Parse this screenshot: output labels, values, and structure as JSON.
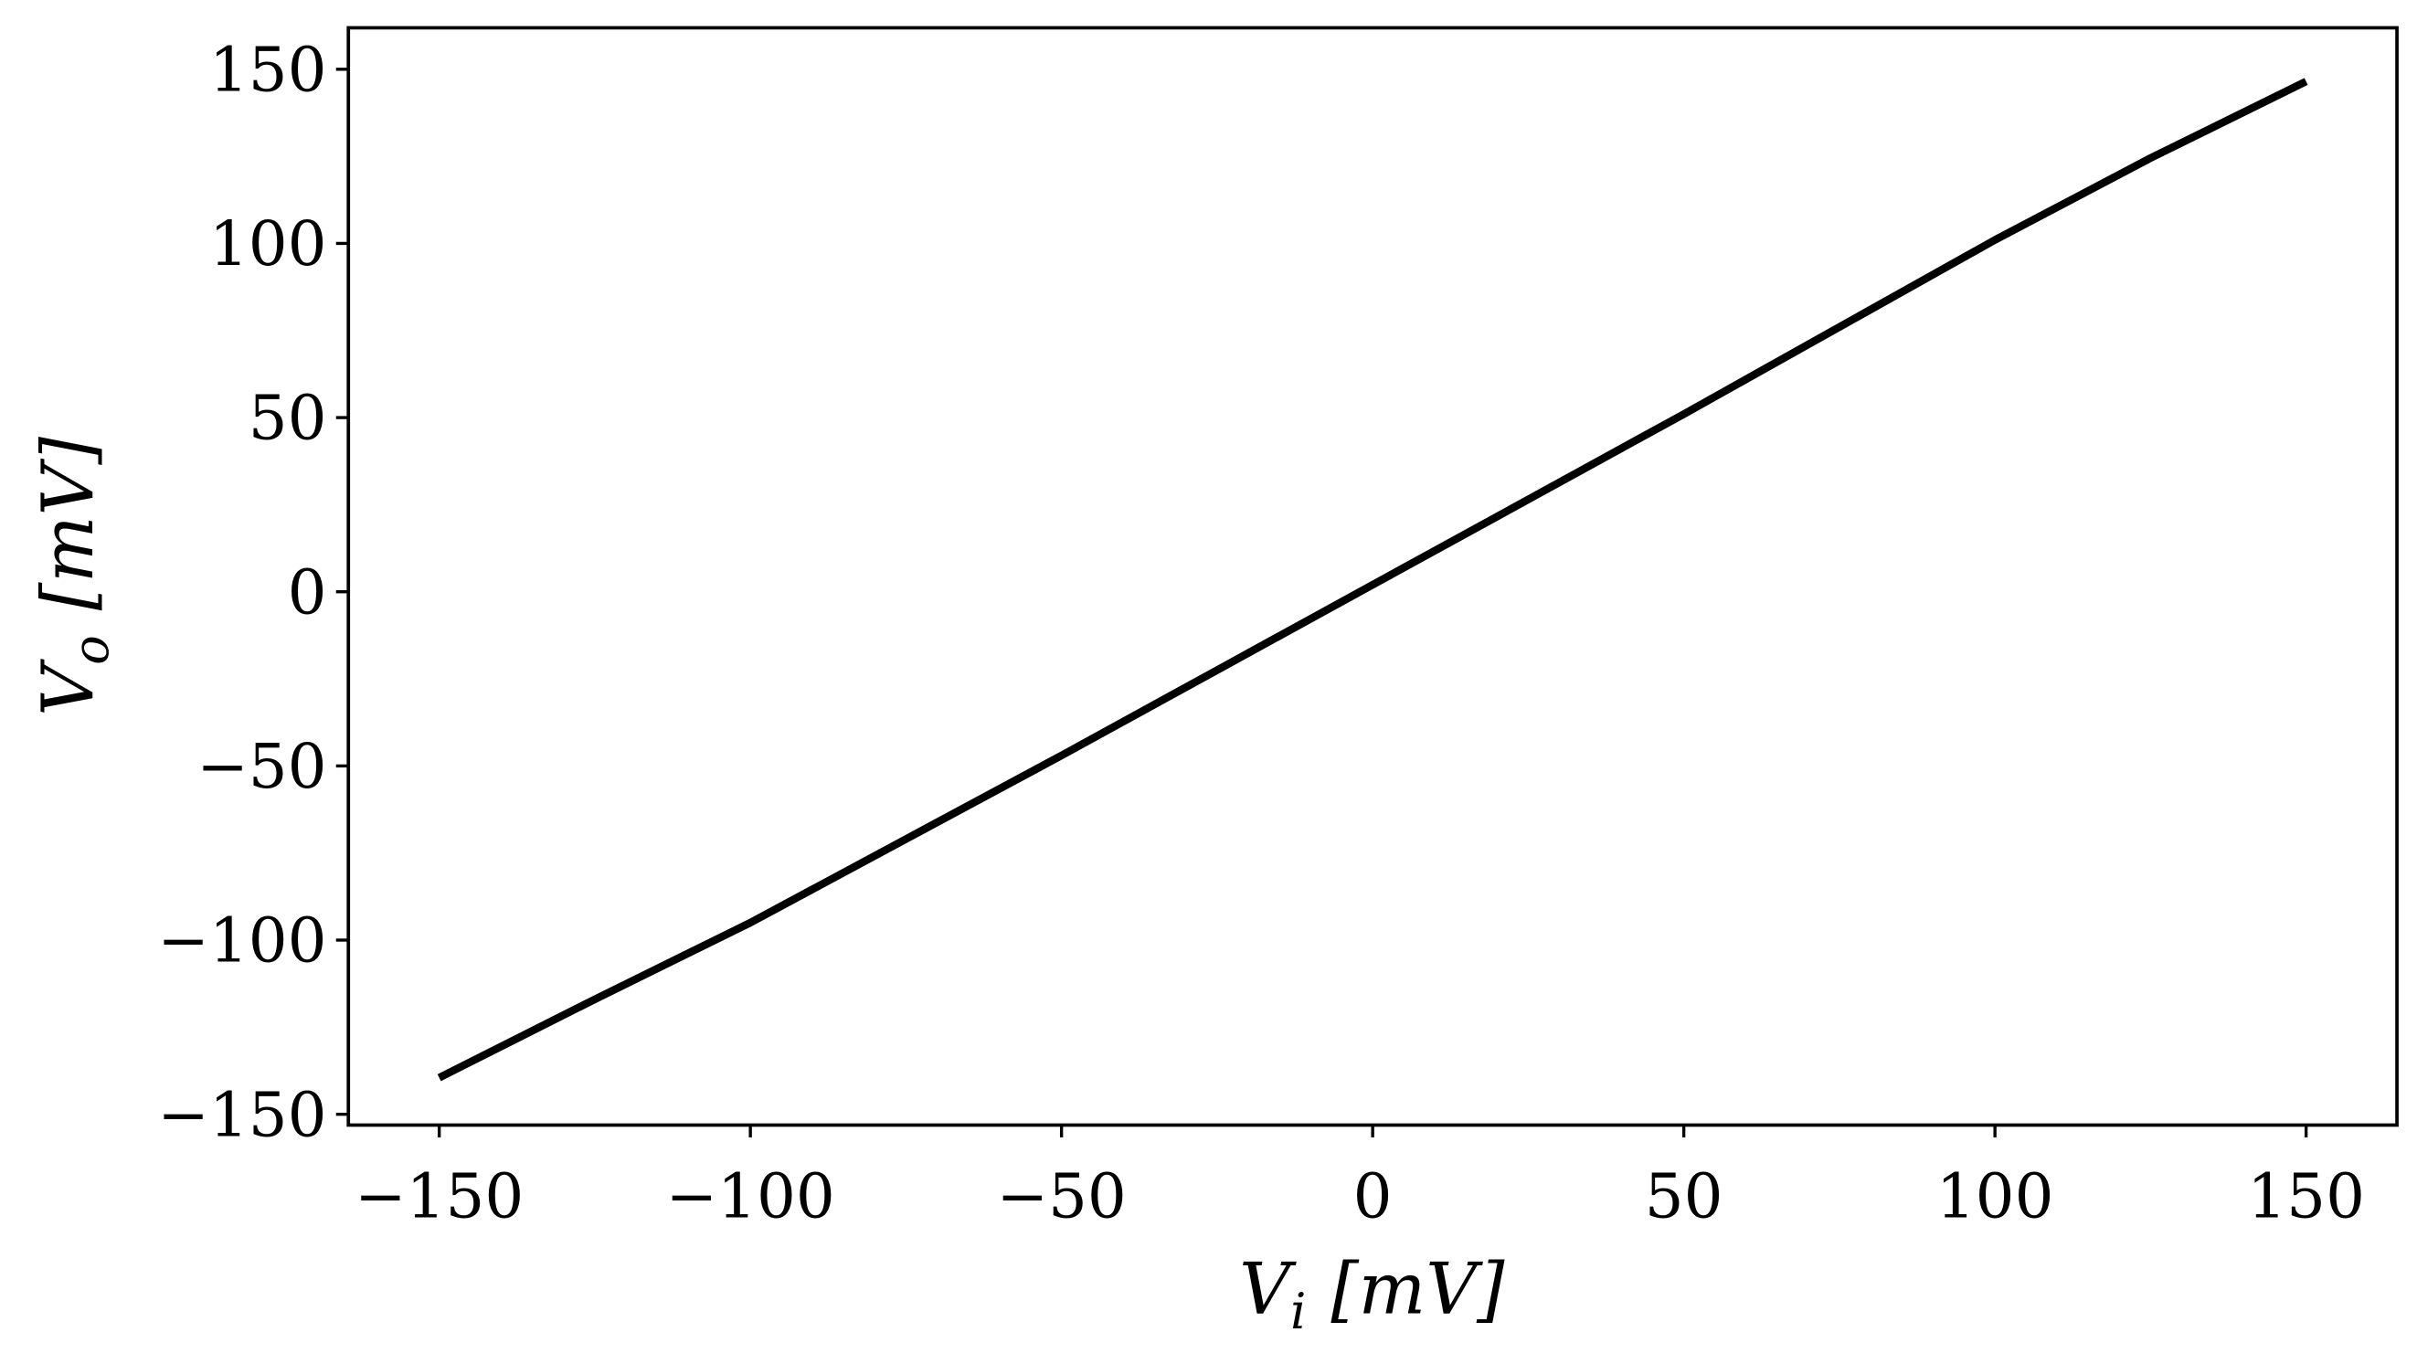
{
  "chart_data": {
    "type": "line",
    "x_label": {
      "base": "V",
      "sub": "i",
      "unit": "[mV]"
    },
    "y_label": {
      "base": "V",
      "sub": "o",
      "unit": "[mV]"
    },
    "x": [
      -150,
      -125,
      -100,
      -75,
      -50,
      -25,
      0,
      25,
      50,
      75,
      100,
      125,
      150
    ],
    "series": [
      {
        "color": "#000000",
        "values": [
          -139.5,
          -117,
          -95,
          -71,
          -47,
          -22.5,
          2,
          26.5,
          51,
          76,
          101,
          124.5,
          146.5
        ]
      }
    ],
    "xlim": [
      -164.6,
      164.6
    ],
    "ylim": [
      -153.1,
      161.9
    ],
    "xticks": [
      {
        "value": -150,
        "label": "−150"
      },
      {
        "value": -100,
        "label": "−100"
      },
      {
        "value": -50,
        "label": "−50"
      },
      0,
      50,
      100,
      150
    ],
    "yticks": [
      {
        "value": -150,
        "label": "−150"
      },
      {
        "value": -100,
        "label": "−100"
      },
      {
        "value": -50,
        "label": "−50"
      },
      0,
      50,
      100,
      150
    ],
    "grid": false
  }
}
